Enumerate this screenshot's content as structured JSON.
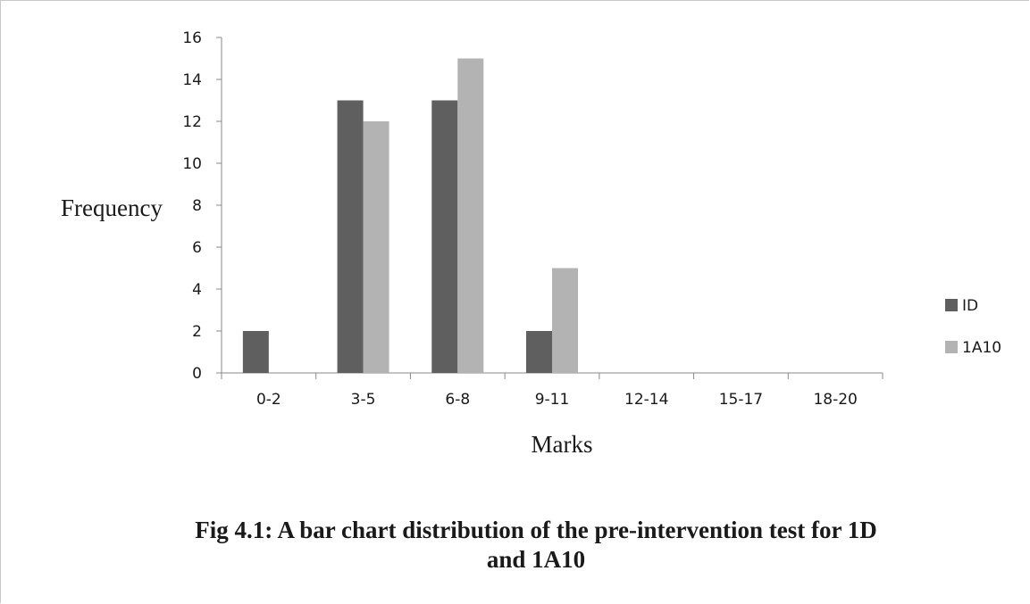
{
  "chart_data": {
    "type": "bar",
    "categories": [
      "0-2",
      "3-5",
      "6-8",
      "9-11",
      "12-14",
      "15-17",
      "18-20"
    ],
    "series": [
      {
        "name": "ID",
        "values": [
          2,
          13,
          13,
          2,
          0,
          0,
          0
        ],
        "color": "#5f5f5f"
      },
      {
        "name": "1A10",
        "values": [
          0,
          12,
          15,
          5,
          0,
          0,
          0
        ],
        "color": "#b3b3b3"
      }
    ],
    "xlabel": "Marks",
    "ylabel": "Frequency",
    "ylim": [
      0,
      16
    ],
    "yticks": [
      "0",
      "2",
      "4",
      "6",
      "8",
      "10",
      "12",
      "14",
      "16"
    ],
    "grid": false,
    "legend": "right",
    "caption_line1": "Fig 4.1: A bar chart distribution of the pre-intervention test for 1D",
    "caption_line2": "and 1A10"
  }
}
